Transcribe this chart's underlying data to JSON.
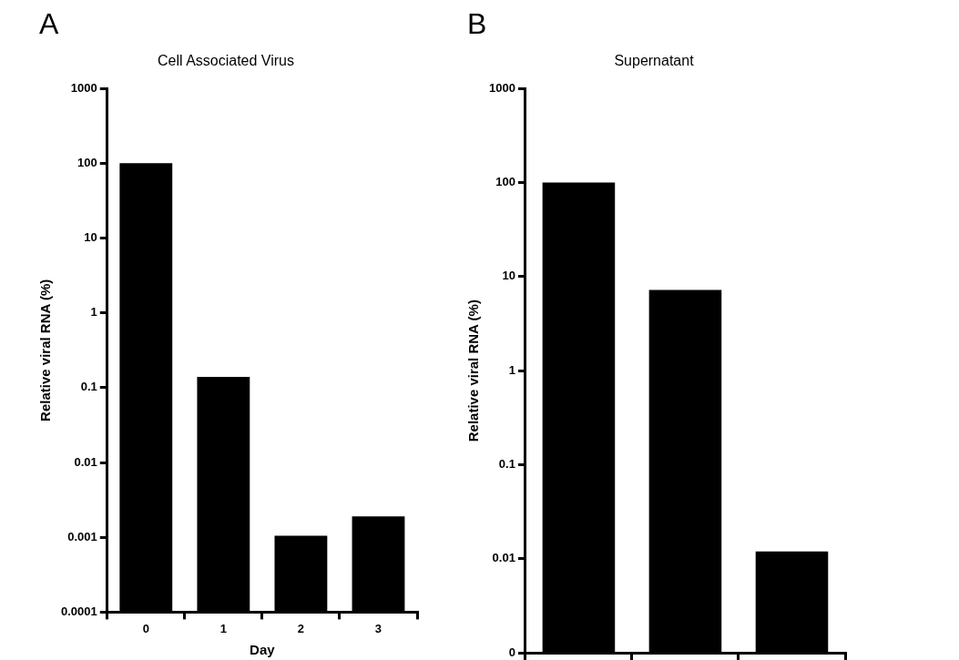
{
  "chart_data": [
    {
      "type": "bar",
      "title": "Cell Associated Virus",
      "xlabel": "Day",
      "ylabel": "Relative viral RNA (%)",
      "annotations": [
        "A"
      ],
      "categories": [
        "0",
        "1",
        "2",
        "3"
      ],
      "values": [
        100,
        0.14,
        0.00105,
        0.0019
      ],
      "color": "#000000",
      "log": true,
      "ylim": [
        0.0001,
        1000
      ],
      "yticks": [
        0.0001,
        0.001,
        0.01,
        0.1,
        1,
        10,
        100,
        1000
      ],
      "grid": false,
      "legend": false
    },
    {
      "type": "bar",
      "title": "Supernatant",
      "ylabel": "Relative viral RNA (%)",
      "annotations": [
        "B"
      ],
      "categories": [
        null,
        null,
        null
      ],
      "values": [
        100,
        7.2,
        0.012
      ],
      "color": "#000000",
      "log": true,
      "ylim": [
        0.001,
        1000
      ],
      "yticks": [
        {
          "value": 0.001,
          "label": "0"
        },
        0.01,
        0.1,
        1,
        10,
        100,
        1000
      ],
      "grid": false,
      "legend": false,
      "tick_labels": "y"
    }
  ]
}
